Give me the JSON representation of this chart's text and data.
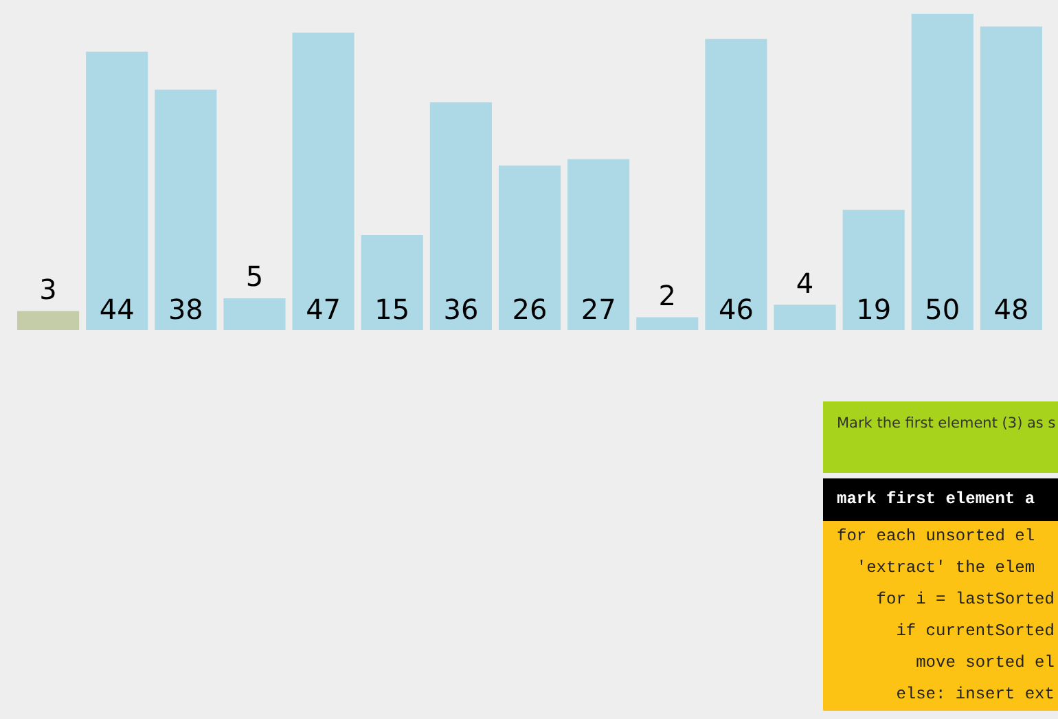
{
  "chart_data": {
    "type": "bar",
    "categories": [
      null,
      null,
      null,
      null,
      null,
      null,
      null,
      null,
      null,
      null,
      null,
      null,
      null,
      null,
      null
    ],
    "values": [
      3,
      44,
      38,
      5,
      47,
      15,
      36,
      26,
      27,
      2,
      46,
      4,
      19,
      50,
      48
    ],
    "colors": [
      "#c5cca8",
      "#add8e6",
      "#add8e6",
      "#add8e6",
      "#add8e6",
      "#add8e6",
      "#add8e6",
      "#add8e6",
      "#add8e6",
      "#add8e6",
      "#add8e6",
      "#add8e6",
      "#add8e6",
      "#add8e6",
      "#add8e6"
    ],
    "data_labels": true,
    "annotations": [
      "Mark the first element (3) as s",
      "mark first element a",
      "for each unsorted el",
      "  'extract' the elem",
      "    for i = lastSorted",
      "      if currentSorted",
      "        move sorted el",
      "      else: insert ext"
    ]
  }
}
